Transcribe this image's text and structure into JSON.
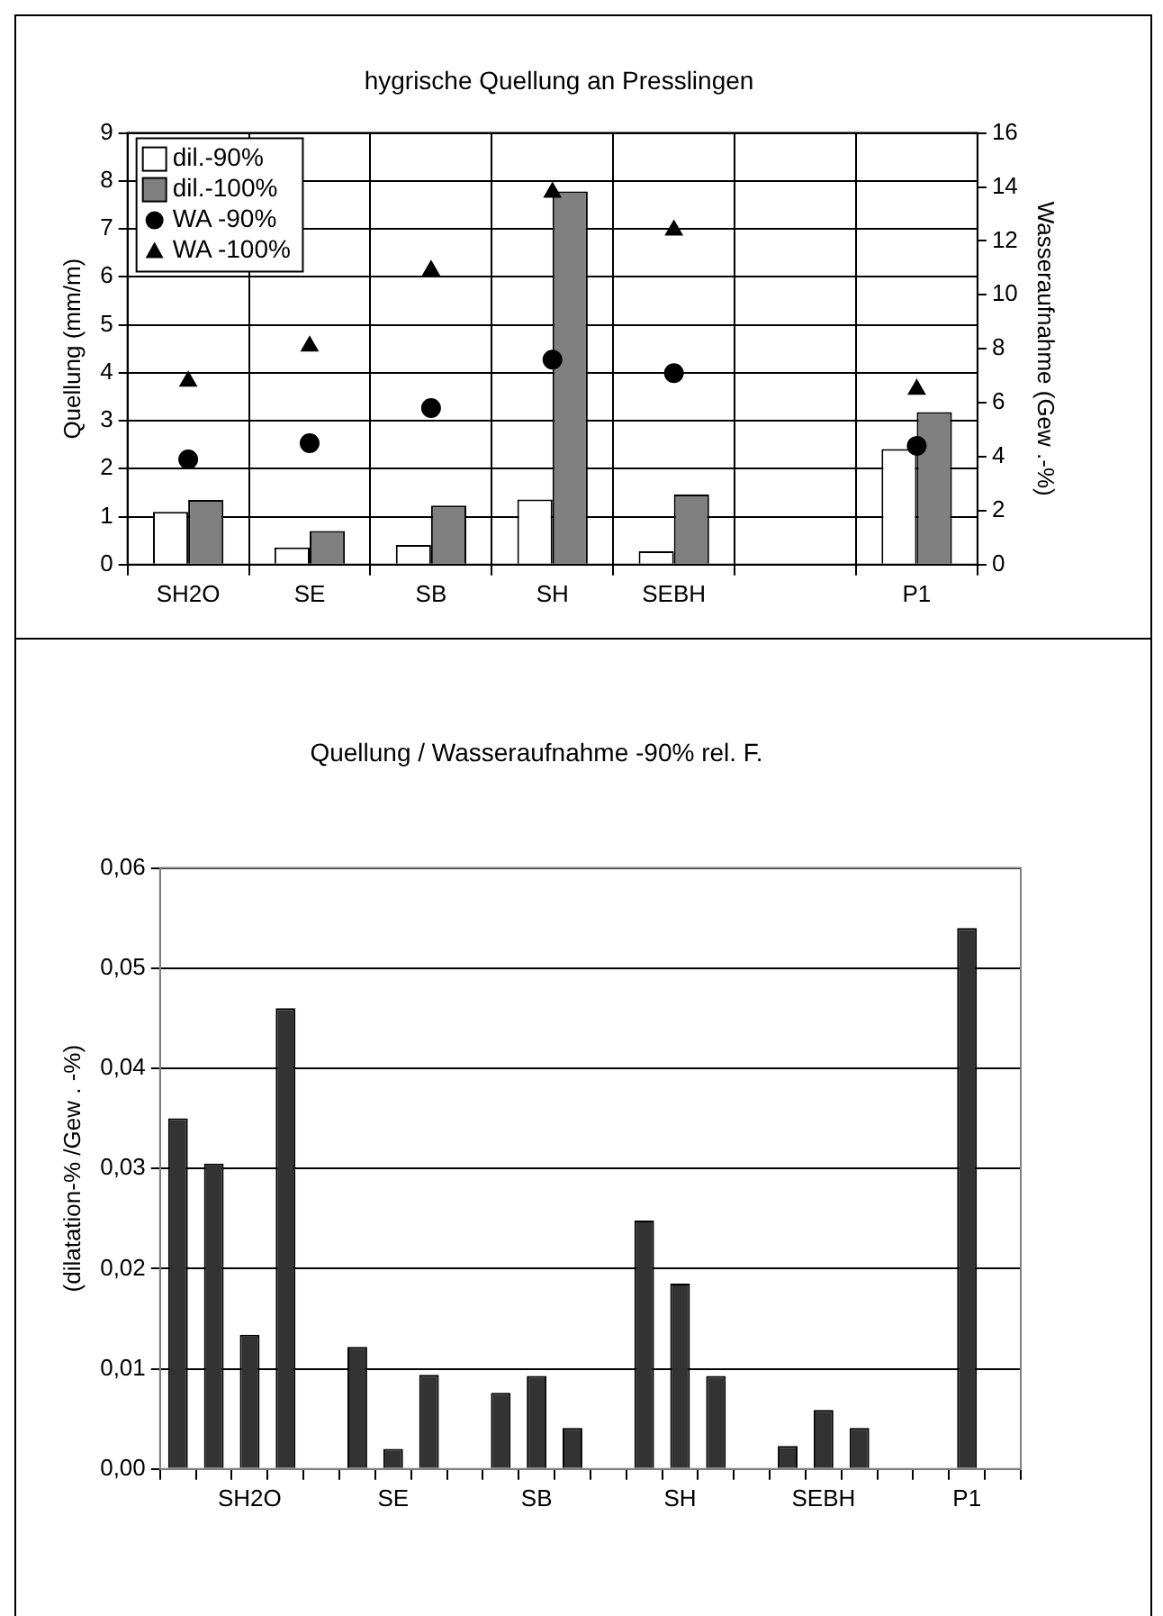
{
  "chart_data": [
    {
      "type": "bar",
      "title": "hygrische Quellung an Presslingen",
      "ylabel": "Quellung (mm/m)",
      "y2label": "Wasseraufnahme (Gew .-%)",
      "categories": [
        "SH2O",
        "SE",
        "SB",
        "SH",
        "SEBH",
        null,
        "P1"
      ],
      "series": [
        {
          "name": "dil.-90%",
          "color": "#ffffff",
          "values": [
            1.1,
            0.36,
            0.41,
            1.36,
            0.28,
            null,
            2.41
          ]
        },
        {
          "name": "dil.-100%",
          "color": "#808080",
          "values": [
            1.35,
            0.7,
            1.23,
            7.78,
            1.46,
            null,
            3.18
          ]
        },
        {
          "name": "WA -90%",
          "type": "scatter",
          "axis": "y2",
          "marker": "circle",
          "color": "#000000",
          "values": [
            3.9,
            4.5,
            5.8,
            7.6,
            7.1,
            null,
            4.4
          ]
        },
        {
          "name": "WA -100%",
          "type": "scatter",
          "axis": "y2",
          "marker": "triangle",
          "color": "#000000",
          "values": [
            6.8,
            8.1,
            10.9,
            13.8,
            12.4,
            null,
            6.5
          ]
        }
      ],
      "ylim": [
        0,
        9
      ],
      "yticks": [
        0,
        1,
        2,
        3,
        4,
        5,
        6,
        7,
        8,
        9
      ],
      "y2lim": [
        0,
        16
      ],
      "y2ticks": [
        0,
        2,
        4,
        6,
        8,
        10,
        12,
        14,
        16
      ],
      "grid": true,
      "legend": "top left"
    },
    {
      "type": "bar",
      "title": "Quellung / Wasseraufnahme -90% rel. F.",
      "ylabel": "(dilatation-% /Gew . -%)",
      "categories": [
        null,
        null,
        "SH2O",
        null,
        null,
        null,
        "SE",
        null,
        null,
        null,
        "SB",
        null,
        null,
        null,
        "SH",
        null,
        null,
        null,
        "SEBH",
        null,
        null,
        null,
        "P1",
        null
      ],
      "values": [
        0.035,
        0.0305,
        0.0134,
        0.046,
        null,
        0.0122,
        0.002,
        0.0094,
        null,
        0.0076,
        0.0093,
        0.0041,
        null,
        0.0248,
        0.0185,
        0.0093,
        null,
        0.0023,
        0.0059,
        0.0041,
        null,
        null,
        0.054,
        null
      ],
      "color": "#333333",
      "ylim": [
        0,
        0.06
      ],
      "yticks": [
        {
          "value": 0,
          "label": "0,00"
        },
        {
          "value": 0.01,
          "label": "0,01"
        },
        {
          "value": 0.02,
          "label": "0,02"
        },
        {
          "value": 0.03,
          "label": "0,03"
        },
        {
          "value": 0.04,
          "label": "0,04"
        },
        {
          "value": 0.05,
          "label": "0,05"
        },
        {
          "value": 0.06,
          "label": "0,06"
        }
      ],
      "grid": "y"
    }
  ]
}
